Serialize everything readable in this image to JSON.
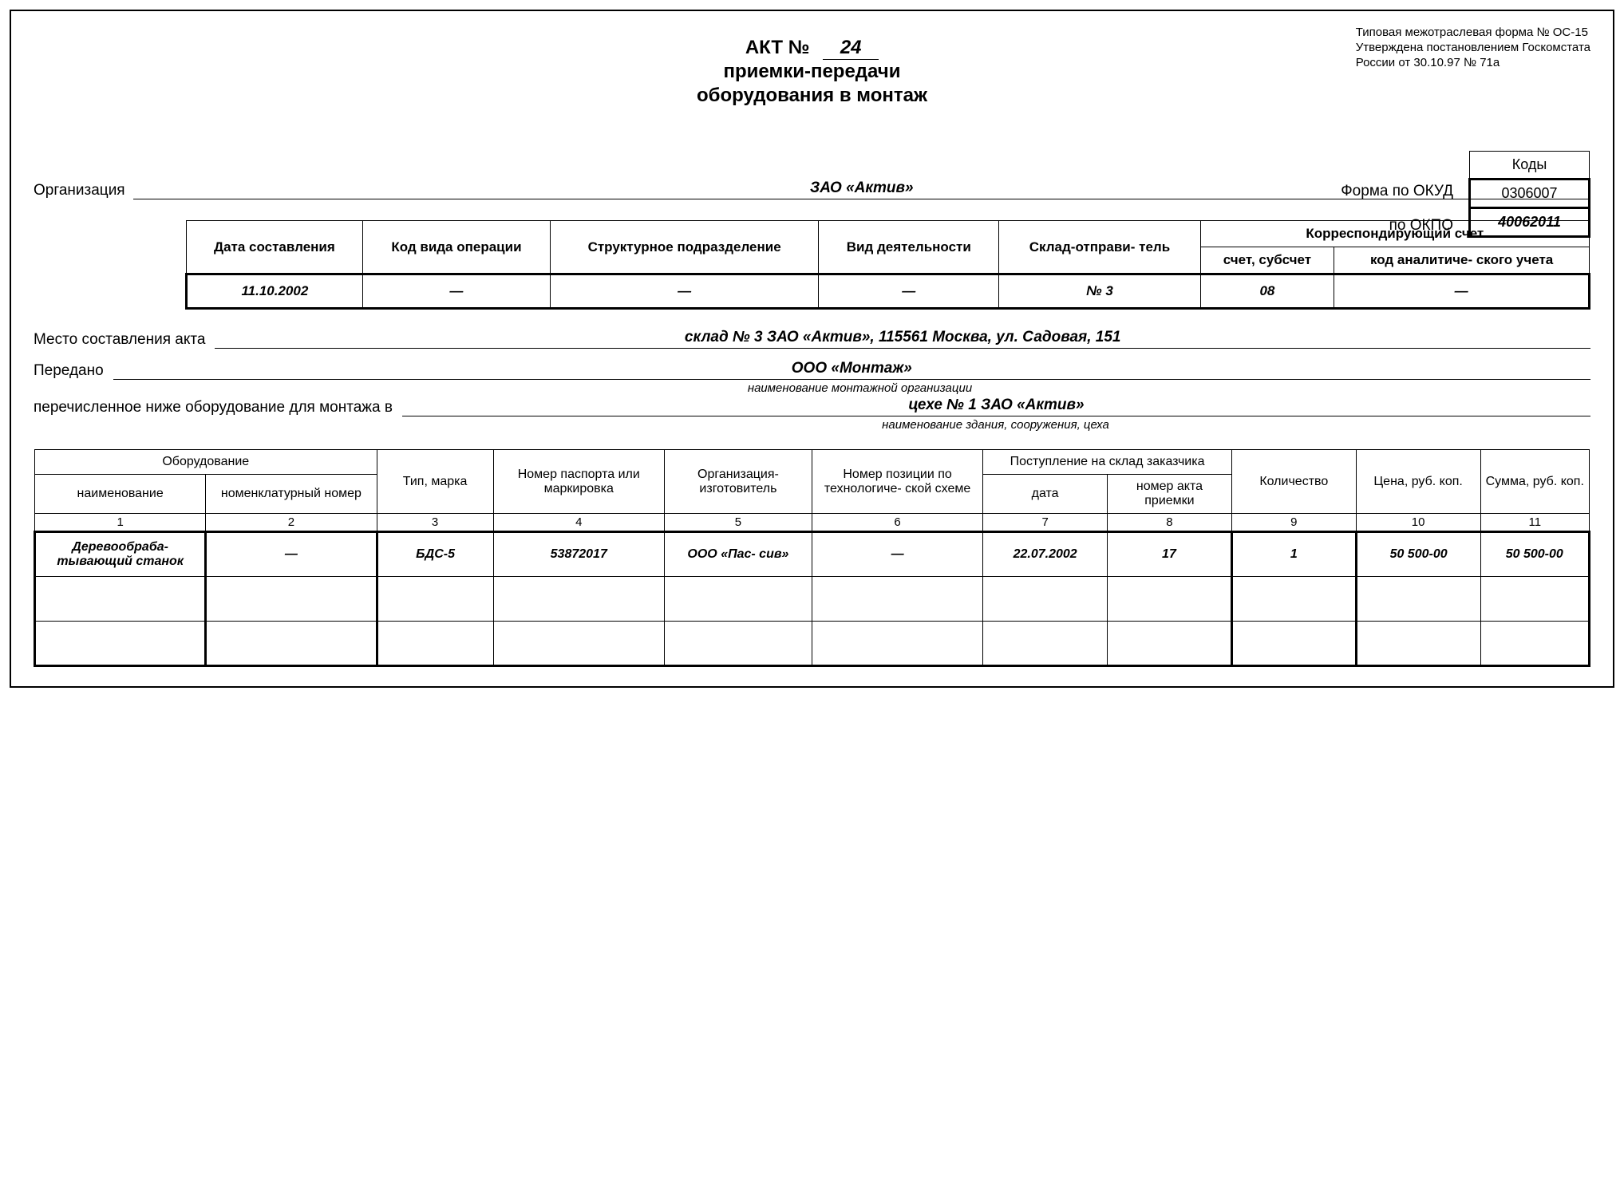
{
  "form_note": {
    "line1": "Типовая межотраслевая форма № ОС-15",
    "line2": "Утверждена постановлением Госкомстата",
    "line3": "России от 30.10.97 № 71a"
  },
  "title": {
    "act_label": "АКТ №",
    "number": "24",
    "sub1": "приемки-передачи",
    "sub2": "оборудования в монтаж"
  },
  "codes": {
    "header": "Коды",
    "okud_label": "Форма по ОКУД",
    "okud_value": "0306007",
    "okpo_label": "по ОКПО",
    "okpo_value": "40062011"
  },
  "org": {
    "label": "Организация",
    "value": "ЗАО «Актив»"
  },
  "meta": {
    "headers": {
      "date": "Дата составления",
      "opcode": "Код вида операции",
      "struct": "Структурное подразделение",
      "activity": "Вид деятельности",
      "sender": "Склад-отправи- тель",
      "corr": "Корреспондирующий счет",
      "account": "счет, субсчет",
      "analytic": "код аналитиче- ского учета"
    },
    "values": {
      "date": "11.10.2002",
      "opcode": "—",
      "struct": "—",
      "activity": "—",
      "sender": "№ 3",
      "account": "08",
      "analytic": "—"
    }
  },
  "place": {
    "label": "Место составления акта",
    "value": "склад № 3 ЗАО «Актив», 115561 Москва, ул. Садовая, 151"
  },
  "transferred": {
    "label": "Передано",
    "value": "ООО «Монтаж»",
    "caption": "наименование монтажной организации"
  },
  "destination": {
    "label": "перечисленное ниже оборудование для монтажа в",
    "value": "цехе № 1 ЗАО «Актив»",
    "caption": "наименование здания, сооружения, цеха"
  },
  "main_table": {
    "headers": {
      "equipment": "Оборудование",
      "name": "наименование",
      "nomen": "номенклатурный номер",
      "type": "Тип, марка",
      "passport": "Номер паспорта или маркировка",
      "manufacturer": "Организация- изготовитель",
      "tech_pos": "Номер позиции по технологиче- ской схеме",
      "receipt": "Поступление на склад заказчика",
      "receipt_date": "дата",
      "receipt_act": "номер акта приемки",
      "qty": "Количество",
      "price": "Цена, руб. коп.",
      "sum": "Сумма, руб. коп."
    },
    "col_nums": [
      "1",
      "2",
      "3",
      "4",
      "5",
      "6",
      "7",
      "8",
      "9",
      "10",
      "11"
    ],
    "rows": [
      {
        "name": "Деревообраба- тывающий станок",
        "nomen": "—",
        "type": "БДС-5",
        "passport": "53872017",
        "manufacturer": "ООО «Пас- сив»",
        "tech_pos": "—",
        "receipt_date": "22.07.2002",
        "receipt_act": "17",
        "qty": "1",
        "price": "50 500-00",
        "sum": "50 500-00"
      },
      {
        "name": "",
        "nomen": "",
        "type": "",
        "passport": "",
        "manufacturer": "",
        "tech_pos": "",
        "receipt_date": "",
        "receipt_act": "",
        "qty": "",
        "price": "",
        "sum": ""
      },
      {
        "name": "",
        "nomen": "",
        "type": "",
        "passport": "",
        "manufacturer": "",
        "tech_pos": "",
        "receipt_date": "",
        "receipt_act": "",
        "qty": "",
        "price": "",
        "sum": ""
      }
    ],
    "col_widths_pct": [
      11,
      11,
      7.5,
      11,
      9.5,
      11,
      8,
      8,
      8,
      8,
      7
    ]
  }
}
